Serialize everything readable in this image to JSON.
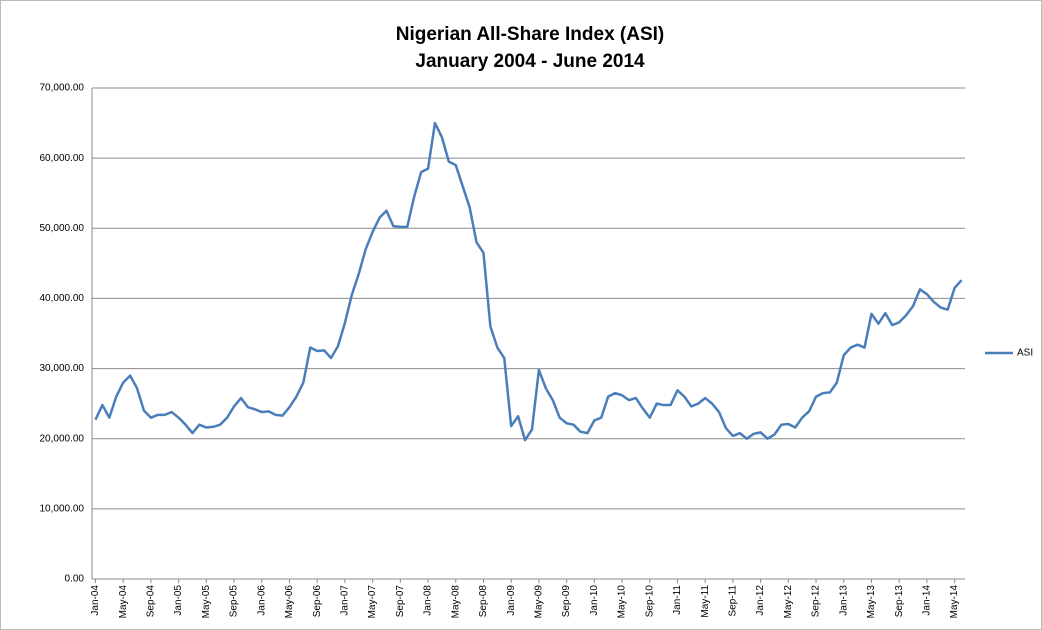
{
  "chart_data": {
    "type": "line",
    "title": "Nigerian All-Share Index (ASI)",
    "subtitle": "January 2004 - June 2014",
    "categories": [
      "Jan-04",
      null,
      null,
      null,
      "May-04",
      null,
      null,
      null,
      "Sep-04",
      null,
      null,
      null,
      "Jan-05",
      null,
      null,
      null,
      "May-05",
      null,
      null,
      null,
      "Sep-05",
      null,
      null,
      null,
      "Jan-06",
      null,
      null,
      null,
      "May-06",
      null,
      null,
      null,
      "Sep-06",
      null,
      null,
      null,
      "Jan-07",
      null,
      null,
      null,
      "May-07",
      null,
      null,
      null,
      "Sep-07",
      null,
      null,
      null,
      "Jan-08",
      null,
      null,
      null,
      "May-08",
      null,
      null,
      null,
      "Sep-08",
      null,
      null,
      null,
      "Jan-09",
      null,
      null,
      null,
      "May-09",
      null,
      null,
      null,
      "Sep-09",
      null,
      null,
      null,
      "Jan-10",
      null,
      null,
      null,
      "May-10",
      null,
      null,
      null,
      "Sep-10",
      null,
      null,
      null,
      "Jan-11",
      null,
      null,
      null,
      "May-11",
      null,
      null,
      null,
      "Sep-11",
      null,
      null,
      null,
      "Jan-12",
      null,
      null,
      null,
      "May-12",
      null,
      null,
      null,
      "Sep-12",
      null,
      null,
      null,
      "Jan-13",
      null,
      null,
      null,
      "May-13",
      null,
      null,
      null,
      "Sep-13",
      null,
      null,
      null,
      "Jan-14",
      null,
      null,
      null,
      "May-14",
      null
    ],
    "series": [
      {
        "name": "ASI",
        "color": "#4a7ebb",
        "values": [
          22700,
          24800,
          23000,
          26000,
          28000,
          29000,
          27200,
          24000,
          23000,
          23400,
          23400,
          23800,
          23000,
          22000,
          20800,
          22000,
          21600,
          21700,
          22000,
          23000,
          24600,
          25800,
          24500,
          24200,
          23800,
          23900,
          23400,
          23300,
          24500,
          26000,
          28000,
          33000,
          32500,
          32600,
          31500,
          33200,
          36500,
          40500,
          43500,
          47000,
          49500,
          51500,
          52500,
          50300,
          50200,
          50200,
          54500,
          58000,
          58500,
          65000,
          63000,
          59500,
          59000,
          56000,
          53000,
          48000,
          46500,
          36000,
          33000,
          31500,
          21800,
          23200,
          19800,
          21300,
          29800,
          27200,
          25500,
          23000,
          22200,
          22000,
          21000,
          20800,
          22600,
          23000,
          26000,
          26500,
          26200,
          25500,
          25800,
          24300,
          23000,
          25000,
          24800,
          24800,
          26900,
          26000,
          24600,
          25000,
          25800,
          25000,
          23800,
          21500,
          20400,
          20800,
          20000,
          20700,
          20900,
          20000,
          20600,
          22000,
          22100,
          21600,
          23000,
          23900,
          26000,
          26500,
          26600,
          28000,
          31900,
          33000,
          33400,
          33000,
          37800,
          36400,
          37900,
          36200,
          36600,
          37600,
          38900,
          41300,
          40600,
          39500,
          38700,
          38400,
          41500,
          42600
        ]
      }
    ],
    "ylim": [
      0,
      70000
    ],
    "yticks": [
      {
        "value": 0,
        "label": "0.00"
      },
      {
        "value": 10000,
        "label": "10,000.00"
      },
      {
        "value": 20000,
        "label": "20,000.00"
      },
      {
        "value": 30000,
        "label": "30,000.00"
      },
      {
        "value": 40000,
        "label": "40,000.00"
      },
      {
        "value": 50000,
        "label": "50,000.00"
      },
      {
        "value": 60000,
        "label": "60,000.00"
      },
      {
        "value": 70000,
        "label": "70,000.00"
      }
    ],
    "grid": true,
    "legend": "right"
  }
}
